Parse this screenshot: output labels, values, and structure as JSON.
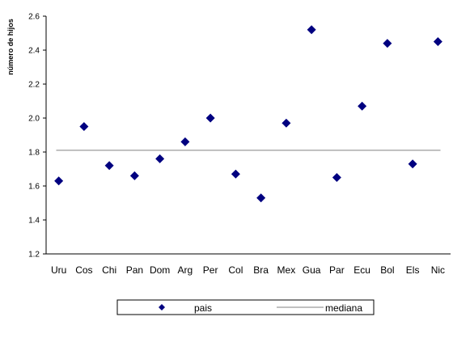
{
  "chart_data": {
    "type": "scatter",
    "title": "",
    "xlabel": "",
    "ylabel": "número de hijos",
    "ylim": [
      1.2,
      2.6
    ],
    "yticks": [
      "1.2",
      "1.4",
      "1.6",
      "1.8",
      "2.0",
      "2.2",
      "2.4",
      "2.6"
    ],
    "categories": [
      "Uru",
      "Cos",
      "Chi",
      "Pan",
      "Dom",
      "Arg",
      "Per",
      "Col",
      "Bra",
      "Mex",
      "Gua",
      "Par",
      "Ecu",
      "Bol",
      "Els",
      "Nic"
    ],
    "series": [
      {
        "name": "pais",
        "marker": "diamond",
        "color": "#000080",
        "values": [
          1.63,
          1.95,
          1.72,
          1.66,
          1.76,
          1.86,
          2.0,
          1.67,
          1.53,
          1.97,
          2.52,
          1.65,
          2.07,
          2.44,
          1.73,
          2.45
        ]
      },
      {
        "name": "mediana",
        "type": "reference-line",
        "color": "#808080",
        "value": 1.81
      }
    ],
    "grid": false,
    "legend": "bottom-center"
  }
}
